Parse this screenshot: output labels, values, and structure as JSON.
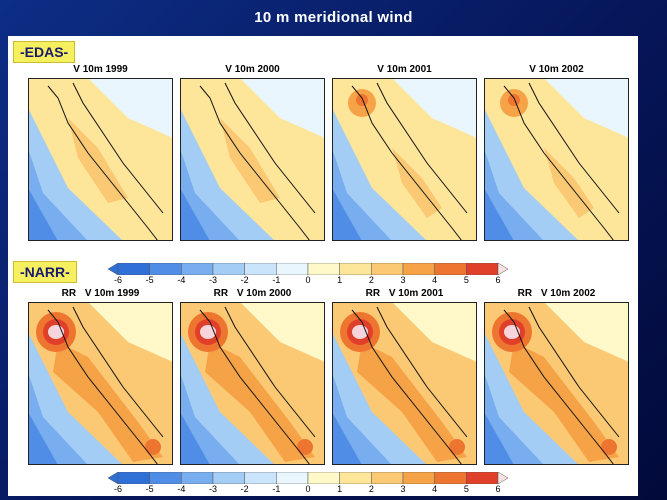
{
  "title": "10 m meridional wind",
  "sections": {
    "edas_label": "-EDAS-",
    "narr_label": "-NARR-"
  },
  "edas_maps": [
    {
      "prefix": "",
      "label": "V 10m",
      "year": "1999"
    },
    {
      "prefix": "",
      "label": "V 10m",
      "year": "2000"
    },
    {
      "prefix": "",
      "label": "V 10m",
      "year": "2001"
    },
    {
      "prefix": "",
      "label": "V 10m",
      "year": "2002"
    }
  ],
  "narr_maps": [
    {
      "prefix": "RR",
      "label": "V 10m",
      "year": "1999"
    },
    {
      "prefix": "RR",
      "label": "V 10m",
      "year": "2000"
    },
    {
      "prefix": "RR",
      "label": "V 10m",
      "year": "2001"
    },
    {
      "prefix": "RR",
      "label": "V 10m",
      "year": "2002"
    }
  ],
  "colorbar": {
    "ticks": [
      "-6",
      "-5",
      "-4",
      "-3",
      "-2",
      "-1",
      "0",
      "1",
      "2",
      "3",
      "4",
      "5",
      "6"
    ],
    "colors": [
      "#2f6fd8",
      "#4f8de6",
      "#78aef0",
      "#a4cdf6",
      "#c9e4fb",
      "#eaf6fe",
      "#fff8c8",
      "#fde59a",
      "#fbc974",
      "#f6a348",
      "#ee7530",
      "#e0402a"
    ]
  }
}
